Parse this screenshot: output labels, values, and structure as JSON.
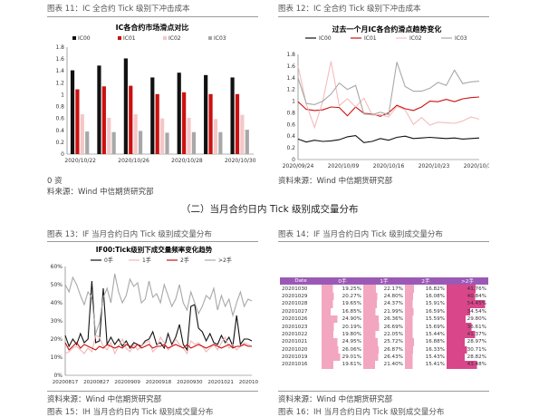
{
  "fig11": {
    "caption": "图表 11：IC 全合约 Tick 级别下冲击成本",
    "chart_data": {
      "type": "bar",
      "title": "IC各合约市场滑点对比",
      "categories": [
        "2020/10/22",
        "2020/10/23",
        "2020/10/26",
        "2020/10/27",
        "2020/10/28",
        "2020/10/29",
        "2020/10/30"
      ],
      "xticks": [
        "2020/10/22",
        "2020/10/26",
        "2020/10/28",
        "2020/10/30"
      ],
      "ylim": [
        0,
        1.8
      ],
      "yticks": [
        "0",
        "0.2",
        "0.4",
        "0.6",
        "0.8",
        "1",
        "1.2",
        "1.4",
        "1.6",
        "1.8"
      ],
      "series": [
        {
          "name": "IC00",
          "color": "#111111",
          "values": [
            1.41,
            1.49,
            1.61,
            1.29,
            1.37,
            1.33,
            1.29
          ]
        },
        {
          "name": "IC01",
          "color": "#cc1010",
          "values": [
            1.09,
            1.14,
            1.15,
            1.01,
            1.04,
            1.01,
            1.01
          ]
        },
        {
          "name": "IC02",
          "color": "#f6c6c6",
          "values": [
            0.67,
            0.61,
            0.67,
            0.6,
            0.61,
            0.59,
            0.66
          ]
        },
        {
          "name": "IC03",
          "color": "#a8a8a8",
          "values": [
            0.38,
            0.37,
            0.39,
            0.36,
            0.37,
            0.37,
            0.41
          ]
        }
      ]
    }
  },
  "fig12": {
    "caption": "图表 12：IC 全合约 Tick 级别下冲击成本",
    "chart_data": {
      "type": "line",
      "title": "过去一个月IC各合约滑点趋势变化",
      "xticks": [
        "2020/09/24",
        "2020/10/09",
        "2020/10/16",
        "2020/10/23",
        "2020/10/30"
      ],
      "ylim": [
        0,
        1.8
      ],
      "yticks": [
        "0",
        "0.2",
        "0.4",
        "0.6",
        "0.8",
        "1",
        "1.2",
        "1.4",
        "1.6",
        "1.8"
      ],
      "series": [
        {
          "name": "IC00",
          "color": "#111111",
          "values": [
            0.35,
            0.3,
            0.33,
            0.31,
            0.32,
            0.34,
            0.39,
            0.41,
            0.29,
            0.31,
            0.36,
            0.33,
            0.38,
            0.4,
            0.36,
            0.37,
            0.38,
            0.37,
            0.36,
            0.37,
            0.35,
            0.36,
            0.37
          ]
        },
        {
          "name": "IC01",
          "color": "#cc1010",
          "values": [
            0.99,
            0.86,
            0.84,
            0.85,
            0.9,
            0.89,
            0.75,
            0.9,
            0.79,
            0.78,
            0.74,
            0.8,
            0.93,
            0.87,
            0.84,
            0.9,
            1.0,
            0.99,
            1.03,
            0.99,
            1.04,
            1.06,
            1.07
          ]
        },
        {
          "name": "IC02",
          "color": "#f3bcbc",
          "values": [
            1.6,
            0.95,
            0.55,
            1.0,
            1.68,
            0.92,
            1.04,
            0.9,
            1.05,
            0.76,
            0.77,
            0.73,
            0.91,
            0.85,
            0.6,
            0.72,
            0.59,
            0.64,
            0.63,
            0.62,
            0.66,
            0.73,
            0.69
          ]
        },
        {
          "name": "IC03",
          "color": "#a8a8a8",
          "values": [
            1.4,
            0.96,
            0.94,
            1.0,
            1.12,
            1.31,
            1.2,
            1.27,
            0.78,
            0.77,
            0.81,
            0.77,
            1.67,
            1.25,
            1.17,
            1.17,
            1.22,
            1.32,
            1.27,
            1.53,
            1.3,
            1.33,
            1.34
          ]
        }
      ]
    }
  },
  "fig11_source_prefix": "0 资",
  "source_text": "料来源：Wind  中信期货研究部",
  "source_text_full": "资料来源：Wind  中信期货研究部",
  "section_heading": "（二）当月合约日内 Tick 级别成交量分布",
  "fig13": {
    "caption": "图表 13：IF 当月合约日内 Tick 级别成交量分布",
    "chart_data": {
      "type": "line",
      "title": "IF00:Tick级别下成交量频率变化趋势",
      "xticks": [
        "20200817",
        "20200827",
        "20200909",
        "20200918",
        "20200930",
        "20201021",
        "20201030"
      ],
      "ylim": [
        0,
        60
      ],
      "yticks": [
        "0%",
        "10%",
        "20%",
        "30%",
        "40%",
        "50%",
        "60%"
      ],
      "series": [
        {
          "name": "0手",
          "color": "#111111",
          "values": [
            22,
            16,
            20,
            17,
            23,
            18,
            20,
            52,
            18,
            19,
            48,
            17,
            21,
            17,
            20,
            16,
            19,
            15,
            18,
            17,
            16,
            19,
            20,
            24,
            17,
            18,
            15,
            23,
            17,
            21,
            28,
            17,
            14,
            38,
            39,
            26,
            24,
            19,
            23,
            18,
            17,
            22,
            18,
            21,
            16,
            33,
            17,
            20,
            20,
            19
          ]
        },
        {
          "name": "1手",
          "color": "#f1b7b7",
          "values": [
            12,
            13,
            15,
            16,
            14,
            12,
            15,
            13,
            22,
            21,
            16,
            14,
            18,
            12,
            16,
            20,
            15,
            13,
            17,
            14,
            16,
            18,
            19,
            13,
            15,
            21,
            18,
            14,
            16,
            20,
            17,
            15,
            12,
            19,
            17,
            18,
            16,
            13,
            15,
            17,
            14,
            18,
            21,
            15,
            17,
            14,
            16,
            18,
            17,
            16
          ]
        },
        {
          "name": "2手",
          "color": "#cc1010",
          "values": [
            18,
            14,
            16,
            18,
            15,
            17,
            16,
            15,
            14,
            16,
            15,
            17,
            16,
            15,
            16,
            15,
            17,
            16,
            15,
            17,
            15,
            16,
            17,
            15,
            16,
            16,
            17,
            15,
            16,
            17,
            16,
            15,
            17,
            15,
            16,
            17,
            16,
            15,
            16,
            17,
            16,
            15,
            16,
            17,
            15,
            16,
            16,
            17,
            16,
            16
          ]
        },
        {
          "name": ">2手",
          "color": "#a8a8a8",
          "values": [
            50,
            46,
            54,
            50,
            44,
            39,
            46,
            43,
            23,
            29,
            43,
            48,
            40,
            56,
            46,
            40,
            44,
            53,
            49,
            51,
            40,
            42,
            52,
            43,
            45,
            40,
            50,
            44,
            38,
            42,
            50,
            40,
            36,
            46,
            40,
            34,
            38,
            44,
            42,
            48,
            36,
            44,
            38,
            42,
            33,
            40,
            46,
            38,
            42,
            41
          ]
        }
      ]
    }
  },
  "fig14": {
    "caption": "图表 14：IF 当月合约日内 Tick 级别成交量分布",
    "table": {
      "headers": [
        "Date",
        "0手",
        "1手",
        "2手",
        ">2手"
      ],
      "rows": [
        {
          "date": "20201030",
          "v": [
            "19.25%",
            "22.17%",
            "16.82%",
            "41.76%"
          ],
          "f": [
            0.27,
            0.3,
            0.22,
            0.7
          ]
        },
        {
          "date": "20201029",
          "v": [
            "20.27%",
            "24.80%",
            "16.08%",
            "40.84%"
          ],
          "f": [
            0.29,
            0.34,
            0.2,
            0.68
          ]
        },
        {
          "date": "20201028",
          "v": [
            "19.65%",
            "24.37%",
            "15.91%",
            "54.45%"
          ],
          "f": [
            0.27,
            0.33,
            0.19,
            0.92
          ]
        },
        {
          "date": "20201027",
          "v": [
            "16.85%",
            "21.99%",
            "16.59%",
            "34.54%"
          ],
          "f": [
            0.22,
            0.29,
            0.21,
            0.56
          ]
        },
        {
          "date": "20201026",
          "v": [
            "24.90%",
            "26.36%",
            "15.59%",
            "29.80%"
          ],
          "f": [
            0.38,
            0.37,
            0.19,
            0.46
          ]
        },
        {
          "date": "20201023",
          "v": [
            "20.19%",
            "26.69%",
            "15.69%",
            "36.61%"
          ],
          "f": [
            0.29,
            0.38,
            0.19,
            0.6
          ]
        },
        {
          "date": "20201022",
          "v": [
            "19.80%",
            "22.05%",
            "15.44%",
            "41.37%"
          ],
          "f": [
            0.28,
            0.29,
            0.18,
            0.69
          ]
        },
        {
          "date": "20201021",
          "v": [
            "24.95%",
            "25.72%",
            "16.88%",
            "28.97%"
          ],
          "f": [
            0.38,
            0.35,
            0.22,
            0.44
          ]
        },
        {
          "date": "20201020",
          "v": [
            "26.06%",
            "26.87%",
            "16.33%",
            "30.71%"
          ],
          "f": [
            0.4,
            0.37,
            0.2,
            0.49
          ]
        },
        {
          "date": "20201019",
          "v": [
            "29.01%",
            "26.43%",
            "15.43%",
            "28.82%"
          ],
          "f": [
            0.45,
            0.36,
            0.18,
            0.44
          ]
        },
        {
          "date": "20201016",
          "v": [
            "19.61%",
            "21.40%",
            "15.41%",
            "43.48%"
          ],
          "f": [
            0.28,
            0.28,
            0.18,
            0.73
          ]
        }
      ]
    }
  },
  "fig15_partial": "图表 15：IH 当月合约日内 Tick 级别成交量分布",
  "fig16_partial": "图表 16：IH 当月合约日内 Tick 级别成交量分布"
}
